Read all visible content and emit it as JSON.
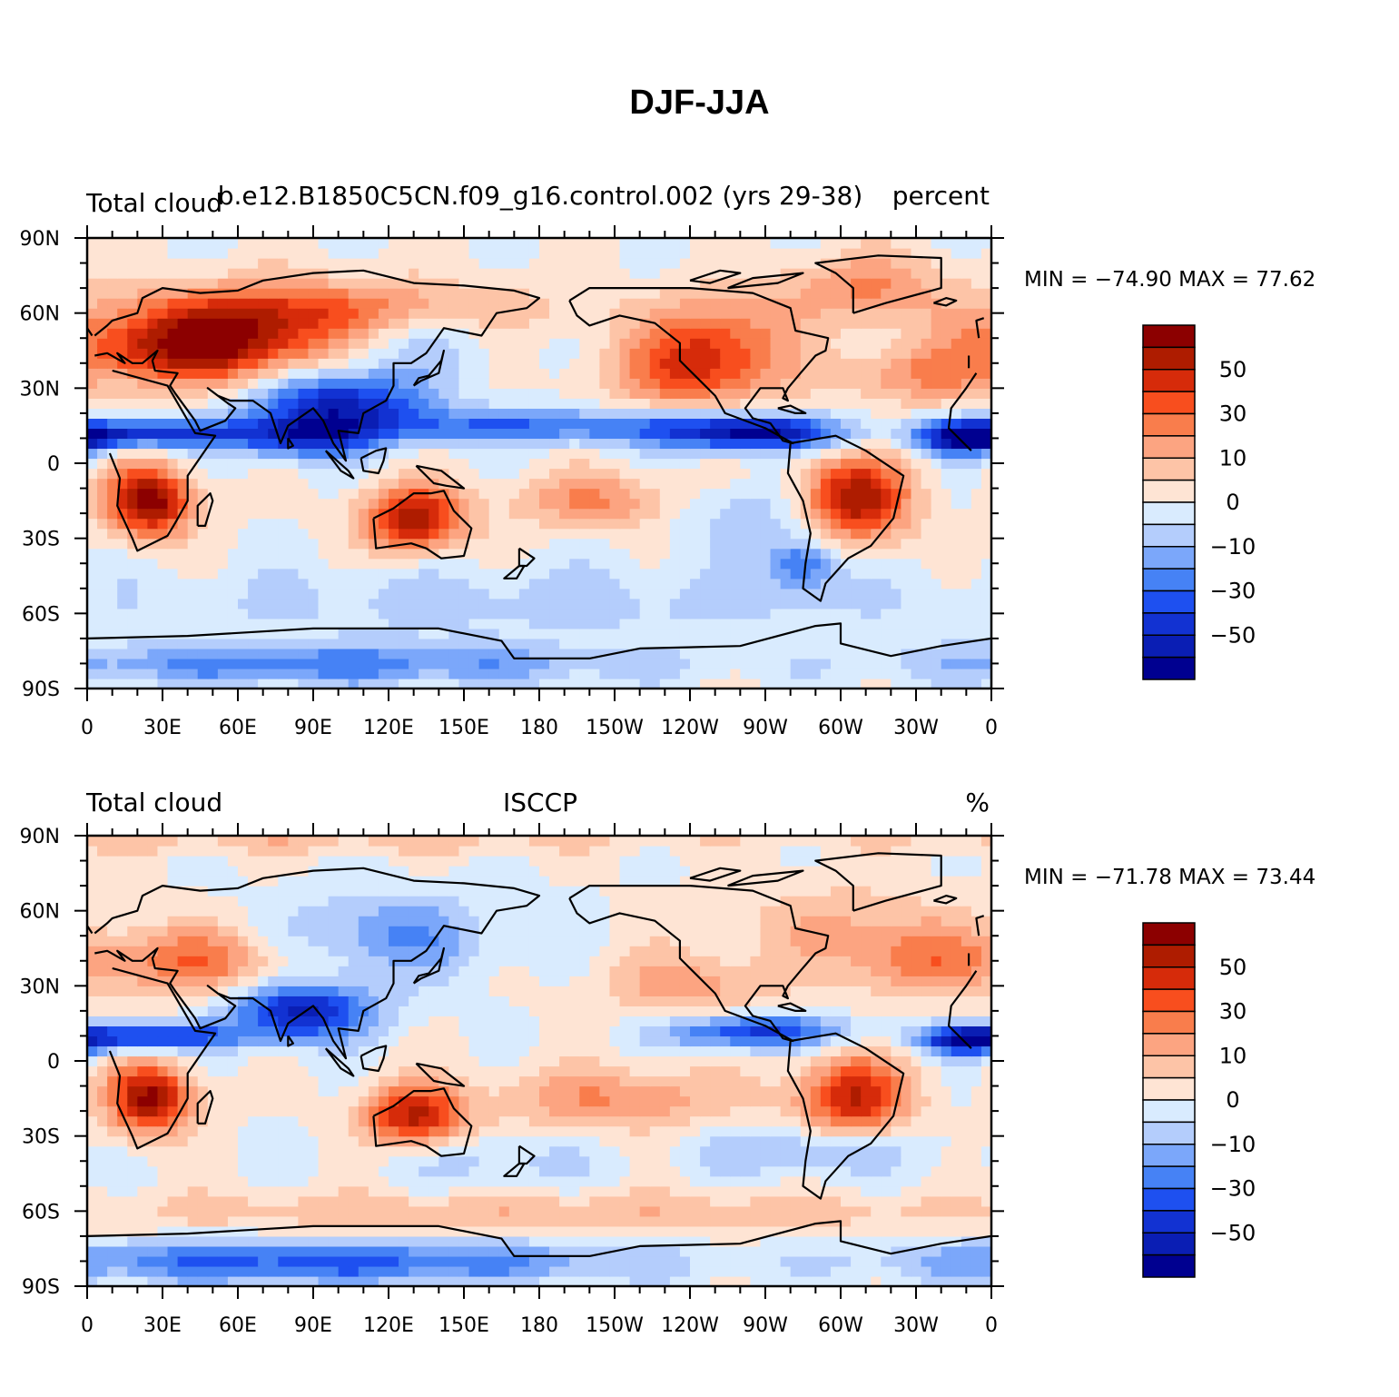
{
  "title": "DJF-JJA",
  "colors": {
    "levels": [
      "#000090",
      "#0a1eb4",
      "#1232d2",
      "#1e50f0",
      "#4682f5",
      "#7ba7fa",
      "#b4cdfc",
      "#d9ebfe",
      "#fee4d4",
      "#fdc4a7",
      "#fca481",
      "#f97d4c",
      "#f84e1e",
      "#d62b0a",
      "#ae1c00",
      "#8c0000"
    ],
    "land_outline": "#000000"
  },
  "axes": {
    "lon_ticks": [
      "0",
      "30E",
      "60E",
      "90E",
      "120E",
      "150E",
      "180",
      "150W",
      "120W",
      "90W",
      "60W",
      "30W",
      "0"
    ],
    "lat_ticks": [
      "90N",
      "60N",
      "30N",
      "0",
      "30S",
      "60S",
      "90S"
    ]
  },
  "panels": [
    {
      "left_label": "Total cloud",
      "center_label": "b.e12.B1850C5CN.f09_g16.control.002 (yrs 29-38)",
      "right_label": "percent",
      "min_max": "MIN = −74.90 MAX =  77.62",
      "colorbar_labels": [
        "50",
        "30",
        "10",
        "0",
        "−10",
        "−30",
        "−50"
      ],
      "field": "model"
    },
    {
      "left_label": "Total cloud",
      "center_label": "ISCCP",
      "right_label": "%",
      "min_max": "MIN = −71.78 MAX =  73.44",
      "colorbar_labels": [
        "50",
        "30",
        "10",
        "0",
        "−10",
        "−30",
        "−50"
      ],
      "field": "obs"
    }
  ]
}
